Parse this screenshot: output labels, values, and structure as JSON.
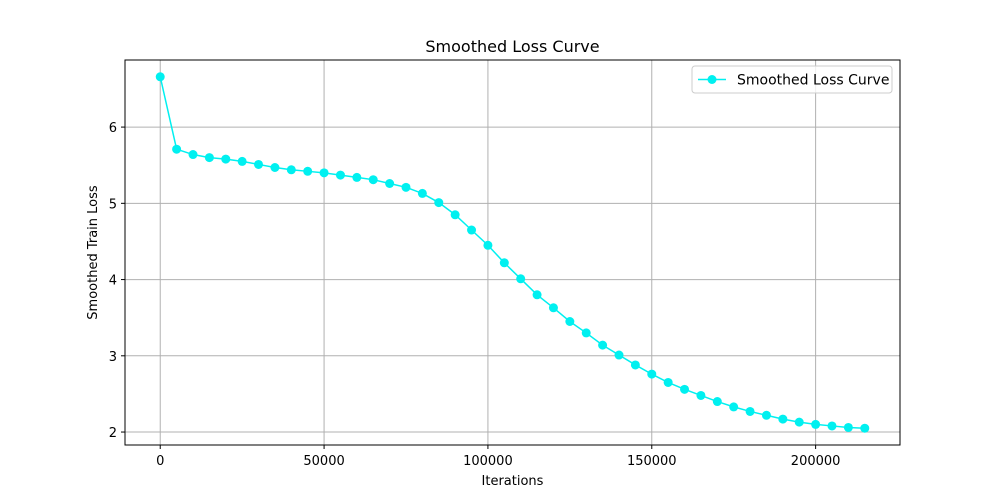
{
  "chart_data": {
    "type": "line",
    "title": "Smoothed Loss Curve",
    "xlabel": "Iterations",
    "ylabel": "Smoothed Train Loss",
    "xlim": [
      -10750,
      225750
    ],
    "ylim": [
      1.83,
      6.88
    ],
    "xticks": [
      0,
      50000,
      100000,
      150000,
      200000
    ],
    "yticks": [
      2,
      3,
      4,
      5,
      6
    ],
    "grid": true,
    "legend_position": "top-right",
    "colors": {
      "series": "#00f0f0",
      "grid": "#b0b0b0",
      "axis": "#000000"
    },
    "series": [
      {
        "name": "Smoothed Loss Curve",
        "marker": "circle",
        "x": [
          0,
          5000,
          10000,
          15000,
          20000,
          25000,
          30000,
          35000,
          40000,
          45000,
          50000,
          55000,
          60000,
          65000,
          70000,
          75000,
          80000,
          85000,
          90000,
          95000,
          100000,
          105000,
          110000,
          115000,
          120000,
          125000,
          130000,
          135000,
          140000,
          145000,
          150000,
          155000,
          160000,
          165000,
          170000,
          175000,
          180000,
          185000,
          190000,
          195000,
          200000,
          205000,
          210000,
          215000
        ],
        "y": [
          6.66,
          5.71,
          5.64,
          5.6,
          5.58,
          5.55,
          5.51,
          5.47,
          5.44,
          5.42,
          5.4,
          5.37,
          5.34,
          5.31,
          5.26,
          5.21,
          5.13,
          5.01,
          4.85,
          4.65,
          4.45,
          4.22,
          4.01,
          3.8,
          3.63,
          3.45,
          3.3,
          3.14,
          3.01,
          2.88,
          2.76,
          2.65,
          2.56,
          2.48,
          2.4,
          2.33,
          2.27,
          2.22,
          2.17,
          2.13,
          2.1,
          2.08,
          2.06,
          2.05
        ]
      }
    ]
  }
}
